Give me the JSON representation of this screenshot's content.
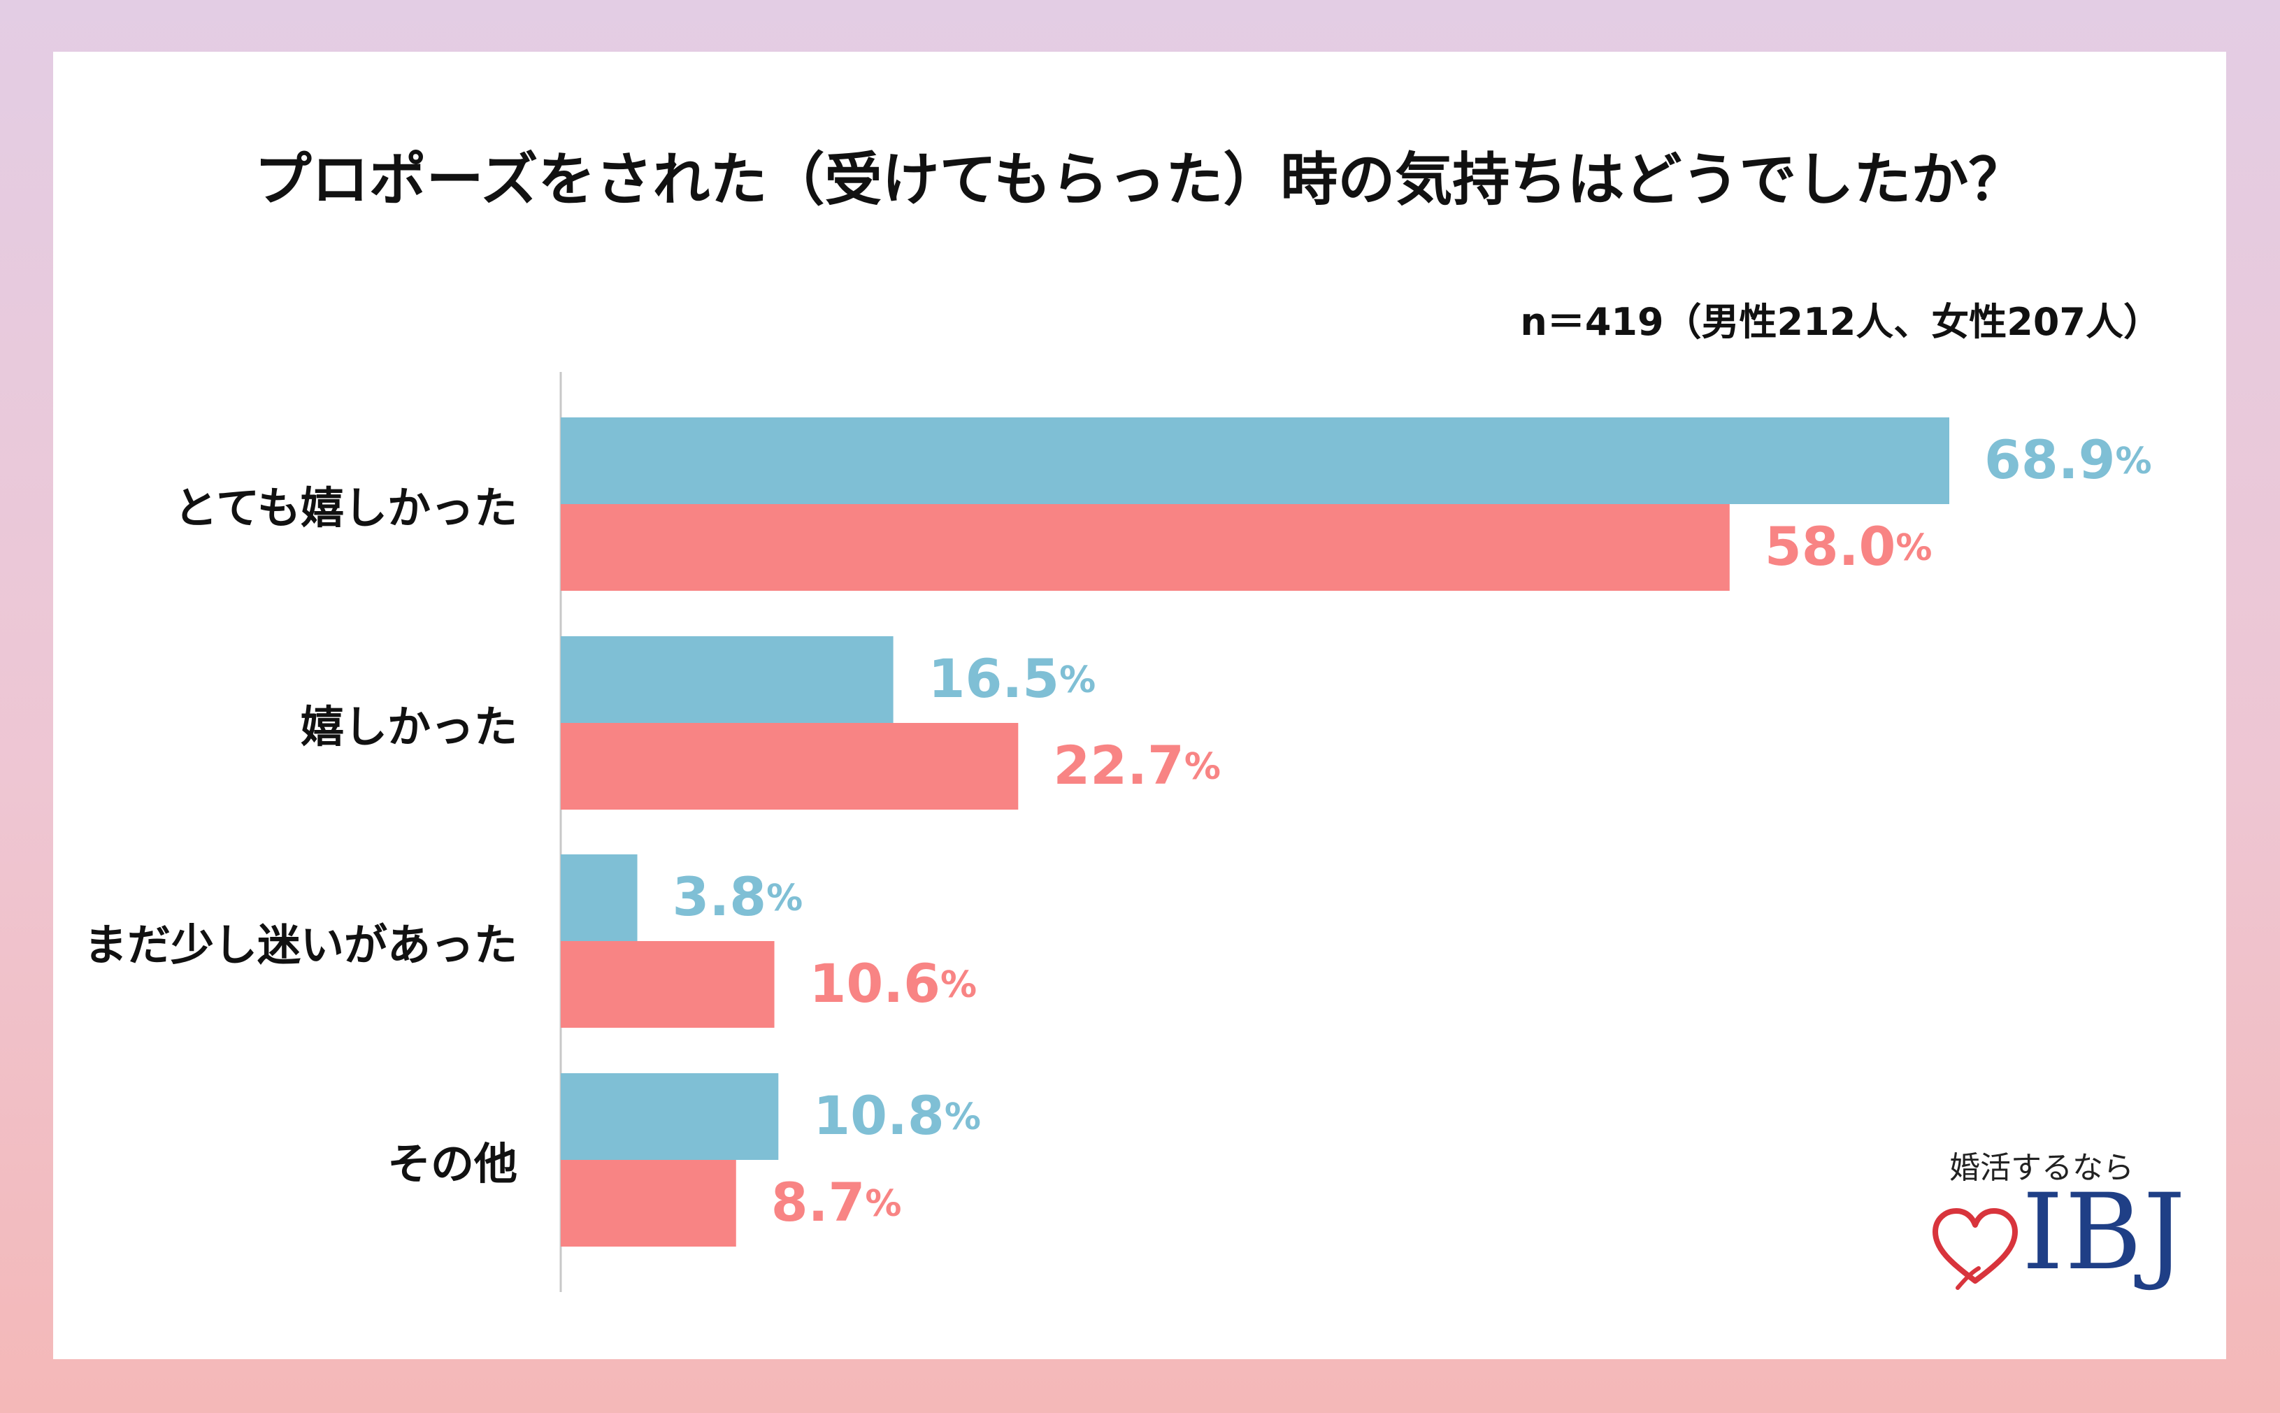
{
  "title": "プロポーズをされた（受けてもらった）時の気持ちはどうでしたか？",
  "sample_note": "n＝419（男性212人、女性207人）",
  "logo": {
    "tagline": "婚活するなら",
    "brand": "IBJ"
  },
  "colors": {
    "male": "#7fbfd5",
    "female": "#f88484",
    "axis": "#c8c8c8",
    "text": "#111111",
    "logo_blue": "#1f3f86",
    "logo_red": "#d8343c"
  },
  "chart_data": {
    "type": "bar",
    "orientation": "horizontal",
    "categories": [
      "とても嬉しかった",
      "嬉しかった",
      "まだ少し迷いがあった",
      "その他"
    ],
    "series": [
      {
        "values": [
          68.9,
          16.5,
          3.8,
          10.8
        ],
        "labels": [
          "68.9",
          "16.5",
          "3.8",
          "10.8"
        ]
      },
      {
        "values": [
          58.0,
          22.7,
          10.6,
          8.7
        ],
        "labels": [
          "58.0",
          "22.7",
          "10.6",
          "8.7"
        ]
      }
    ],
    "value_unit": "%",
    "xlim": [
      0,
      100
    ],
    "grid": false,
    "legend": "none"
  }
}
